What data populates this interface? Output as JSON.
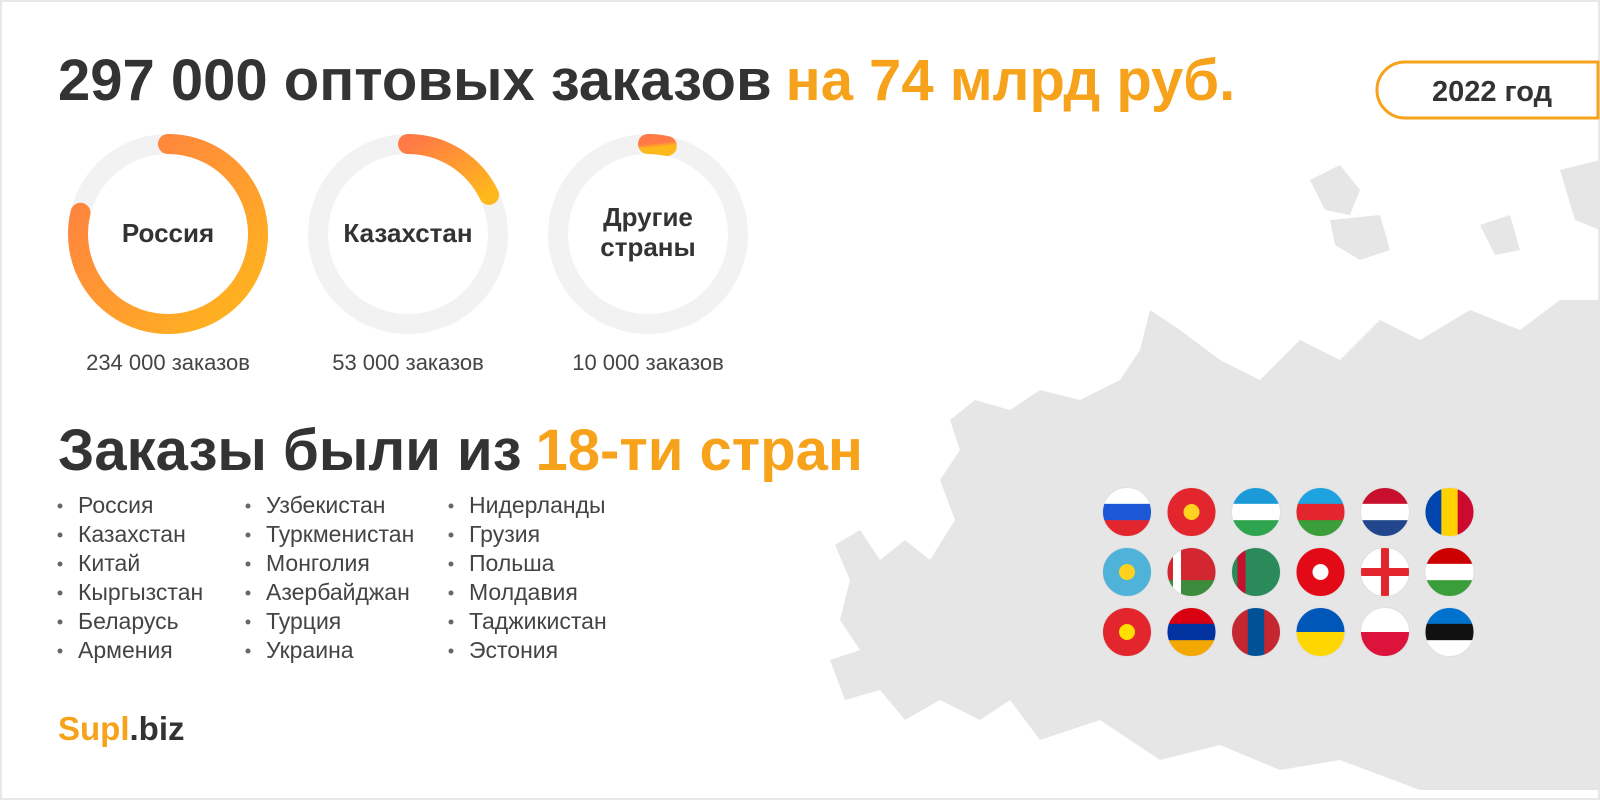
{
  "header": {
    "title_main": "297 000 оптовых заказов",
    "title_accent": "на 74 млрд руб.",
    "year": "2022 год"
  },
  "rings": [
    {
      "label": "Россия",
      "value": 234000,
      "value_label": "234 000 заказов"
    },
    {
      "label": "Казахстан",
      "value": 53000,
      "value_label": "53 000 заказов"
    },
    {
      "label": "Другие страны",
      "value": 10000,
      "value_label": "10 000 заказов"
    }
  ],
  "countries_heading": {
    "main": "Заказы были из",
    "accent": "18-ти стран"
  },
  "countries": [
    [
      "Россия",
      "Казахстан",
      "Китай",
      "Кыргызстан",
      "Беларусь",
      "Армения"
    ],
    [
      "Узбекистан",
      "Туркменистан",
      "Монголия",
      "Азербайджан",
      "Турция",
      "Украина"
    ],
    [
      "Нидерланды",
      "Грузия",
      "Польша",
      "Молдавия",
      "Таджикистан",
      "Эстония"
    ]
  ],
  "logo": {
    "main": "Supl",
    "accent": ".biz"
  }
}
